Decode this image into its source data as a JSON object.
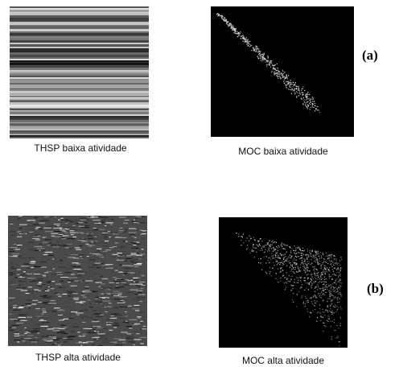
{
  "figure": {
    "panels": [
      {
        "caption": "THSP baixa atividade"
      },
      {
        "caption": "MOC baixa atividade"
      },
      {
        "caption": "THSP alta atividade"
      },
      {
        "caption": "MOC alta atividade"
      }
    ],
    "row_labels": [
      "(a)",
      "(b)"
    ]
  }
}
